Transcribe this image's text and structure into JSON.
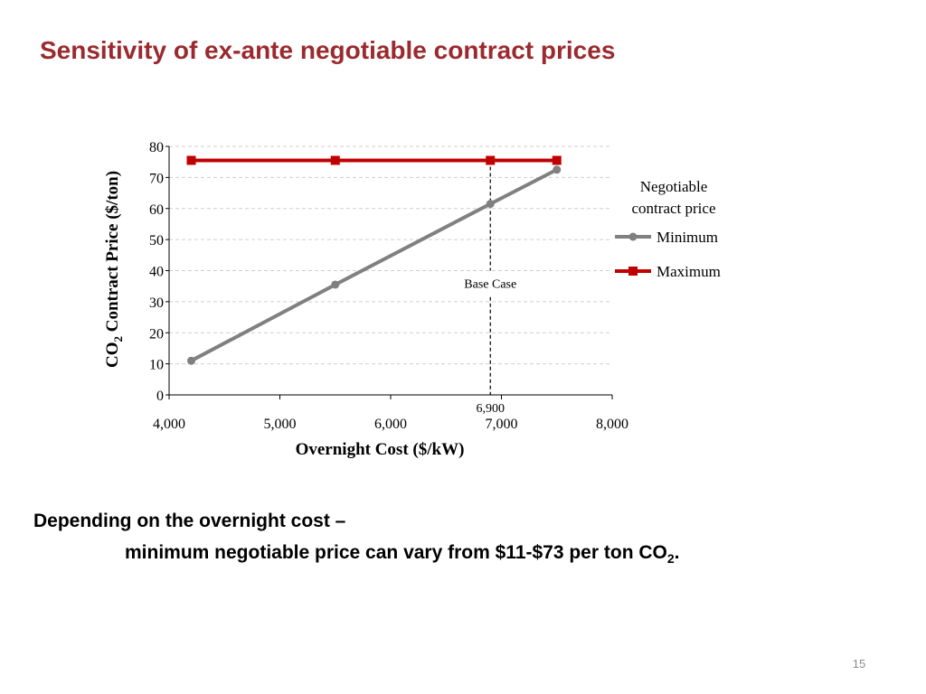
{
  "slide": {
    "title": "Sensitivity of ex-ante negotiable contract prices",
    "body_line1": "Depending on the overnight cost –",
    "body_line2_main": "minimum negotiable price can vary from $11-$73 per ton CO",
    "body_line2_sub": "2",
    "body_line2_end": ".",
    "page_number": "15"
  },
  "chart_data": {
    "type": "line",
    "xlabel": "Overnight Cost ($/kW)",
    "ylabel_prefix": "CO",
    "ylabel_sub": "2",
    "ylabel_rest": " Contract Price ($/ton)",
    "xlim": [
      4000,
      8000
    ],
    "ylim": [
      0,
      80
    ],
    "x_ticks": [
      4000,
      5000,
      6000,
      7000,
      8000
    ],
    "x_tick_labels": [
      "4,000",
      "5,000",
      "6,000",
      "7,000",
      "8,000"
    ],
    "y_ticks": [
      0,
      10,
      20,
      30,
      40,
      50,
      60,
      70,
      80
    ],
    "y_tick_labels": [
      "0",
      "10",
      "20",
      "30",
      "40",
      "50",
      "60",
      "70",
      "80"
    ],
    "grid": "horizontal dashed",
    "legend_position": "right",
    "legend_title_line1": "Negotiable",
    "legend_title_line2": "contract price",
    "series": [
      {
        "name": "Minimum",
        "color": "#808080",
        "marker": "circle",
        "x": [
          4200,
          5500,
          6900,
          7500
        ],
        "y": [
          11,
          35.5,
          61.5,
          72.5
        ]
      },
      {
        "name": "Maximum",
        "color": "#c00000",
        "marker": "square",
        "x": [
          4200,
          5500,
          6900,
          7500
        ],
        "y": [
          75.5,
          75.5,
          75.5,
          75.5
        ]
      }
    ],
    "annotation": {
      "x": 6900,
      "label": "Base Case",
      "x_label": "6,900"
    }
  }
}
